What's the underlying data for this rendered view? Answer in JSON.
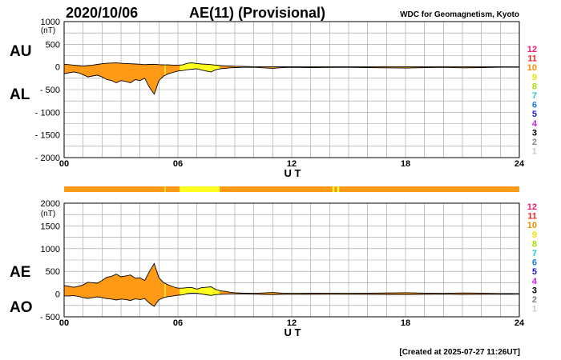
{
  "header": {
    "date": "2020/10/06",
    "title": "AE(11) (Provisional)",
    "source": "WDC for Geomagnetism, Kyoto"
  },
  "footer": {
    "created": "[Created at 2025-07-27 11:26UT]"
  },
  "legend": {
    "levels": [
      {
        "label": "12",
        "color": "#e8196e"
      },
      {
        "label": "11",
        "color": "#e8241c"
      },
      {
        "label": "10",
        "color": "#f08c00"
      },
      {
        "label": "9",
        "color": "#f0e000"
      },
      {
        "label": "8",
        "color": "#a6e000"
      },
      {
        "label": "7",
        "color": "#22c8c8"
      },
      {
        "label": "6",
        "color": "#1e7ce8"
      },
      {
        "label": "5",
        "color": "#1c1ce0"
      },
      {
        "label": "4",
        "color": "#c81ee0"
      },
      {
        "label": "3",
        "color": "#000000"
      },
      {
        "label": "2",
        "color": "#808080"
      },
      {
        "label": "1",
        "color": "#c8c8c8"
      }
    ]
  },
  "colors": {
    "orange": "#ff9a16",
    "yellow": "#ffff1e",
    "grid": "#9a9a9a"
  },
  "station_bar": {
    "segments": [
      {
        "from": 0,
        "to": 5.3,
        "color": "orange"
      },
      {
        "from": 5.3,
        "to": 5.35,
        "color": "yellow"
      },
      {
        "from": 5.35,
        "to": 6.1,
        "color": "orange"
      },
      {
        "from": 6.1,
        "to": 8.2,
        "color": "yellow"
      },
      {
        "from": 8.2,
        "to": 14.15,
        "color": "orange"
      },
      {
        "from": 14.15,
        "to": 14.25,
        "color": "yellow"
      },
      {
        "from": 14.25,
        "to": 14.4,
        "color": "orange"
      },
      {
        "from": 14.4,
        "to": 14.5,
        "color": "yellow"
      },
      {
        "from": 14.5,
        "to": 24,
        "color": "orange"
      }
    ]
  },
  "chart_data": [
    {
      "type": "area",
      "unit": "(nT)",
      "xlabel": "U T",
      "xlim": [
        0,
        24
      ],
      "ylim": [
        -2000,
        1000
      ],
      "x_ticks": [
        "00",
        "06",
        "12",
        "18",
        "24"
      ],
      "y_ticks": [
        "1000",
        "500",
        "0",
        "- 500",
        "- 1000",
        "- 1500",
        "- 2000"
      ],
      "series_labels": [
        "AU",
        "AL"
      ],
      "x": [
        0,
        0.25,
        0.5,
        0.75,
        1,
        1.25,
        1.5,
        1.75,
        2,
        2.25,
        2.5,
        2.75,
        3,
        3.25,
        3.5,
        3.75,
        4,
        4.25,
        4.5,
        4.75,
        5,
        5.25,
        5.5,
        5.75,
        6,
        6.25,
        6.5,
        6.75,
        7,
        7.25,
        7.5,
        7.75,
        8,
        8.25,
        8.5,
        8.75,
        9,
        9.5,
        10,
        10.5,
        11,
        11.5,
        12,
        13,
        14,
        15,
        16,
        17,
        18,
        19,
        20,
        21,
        22,
        23,
        24
      ],
      "au": [
        60,
        50,
        40,
        30,
        20,
        30,
        40,
        55,
        70,
        80,
        85,
        90,
        80,
        75,
        70,
        65,
        60,
        50,
        55,
        60,
        50,
        45,
        45,
        40,
        40,
        45,
        80,
        90,
        75,
        65,
        60,
        50,
        40,
        30,
        25,
        20,
        15,
        10,
        5,
        4,
        4,
        3,
        3,
        4,
        5,
        4,
        5,
        6,
        4,
        5,
        6,
        5,
        4,
        3,
        2
      ],
      "al": [
        -150,
        -130,
        -110,
        -130,
        -170,
        -220,
        -200,
        -180,
        -220,
        -280,
        -300,
        -350,
        -300,
        -320,
        -350,
        -280,
        -300,
        -250,
        -450,
        -600,
        -300,
        -200,
        -150,
        -120,
        -90,
        -80,
        -60,
        -50,
        -40,
        -70,
        -90,
        -110,
        -60,
        -40,
        -30,
        -20,
        -15,
        -10,
        -8,
        -20,
        -30,
        -15,
        -10,
        -15,
        -12,
        -10,
        -15,
        -20,
        -25,
        -15,
        -10,
        -20,
        -15,
        -8,
        -5
      ],
      "colors_by_hour": [
        {
          "from": 0,
          "to": 5.3,
          "color": "orange"
        },
        {
          "from": 5.3,
          "to": 5.35,
          "color": "yellow"
        },
        {
          "from": 5.35,
          "to": 6.1,
          "color": "orange"
        },
        {
          "from": 6.1,
          "to": 8.2,
          "color": "yellow"
        },
        {
          "from": 8.2,
          "to": 24,
          "color": "orange"
        }
      ]
    },
    {
      "type": "area",
      "unit": "(nT)",
      "xlabel": "U T",
      "xlim": [
        0,
        24
      ],
      "ylim": [
        -500,
        2000
      ],
      "x_ticks": [
        "00",
        "06",
        "12",
        "18",
        "24"
      ],
      "y_ticks": [
        "2000",
        "1500",
        "1000",
        "500",
        "0",
        "- 500"
      ],
      "series_labels": [
        "AE",
        "AO"
      ],
      "x": [
        0,
        0.25,
        0.5,
        0.75,
        1,
        1.25,
        1.5,
        1.75,
        2,
        2.25,
        2.5,
        2.75,
        3,
        3.25,
        3.5,
        3.75,
        4,
        4.25,
        4.5,
        4.75,
        5,
        5.25,
        5.5,
        5.75,
        6,
        6.25,
        6.5,
        6.75,
        7,
        7.25,
        7.5,
        7.75,
        8,
        8.25,
        8.5,
        8.75,
        9,
        9.5,
        10,
        10.5,
        11,
        11.5,
        12,
        13,
        14,
        15,
        16,
        17,
        18,
        19,
        20,
        21,
        22,
        23,
        24
      ],
      "ae": [
        190,
        170,
        150,
        170,
        200,
        260,
        250,
        240,
        300,
        370,
        390,
        440,
        380,
        400,
        420,
        350,
        360,
        300,
        500,
        670,
        360,
        250,
        200,
        160,
        130,
        130,
        140,
        140,
        110,
        140,
        150,
        160,
        100,
        70,
        60,
        40,
        30,
        20,
        15,
        25,
        35,
        20,
        15,
        20,
        18,
        15,
        20,
        25,
        30,
        20,
        16,
        25,
        20,
        12,
        8
      ],
      "ao": [
        -40,
        -40,
        -35,
        -50,
        -75,
        -95,
        -80,
        -60,
        -75,
        -100,
        -110,
        -130,
        -110,
        -120,
        -140,
        -105,
        -120,
        -100,
        -200,
        -270,
        -125,
        -80,
        -55,
        -40,
        -25,
        -18,
        10,
        20,
        18,
        0,
        -15,
        -30,
        -10,
        -5,
        -2,
        0,
        0,
        0,
        -2,
        -8,
        -13,
        -6,
        -4,
        -5,
        -4,
        -3,
        -5,
        -7,
        -10,
        -5,
        -2,
        -8,
        -6,
        -3,
        -2
      ],
      "colors_by_hour": [
        {
          "from": 0,
          "to": 5.3,
          "color": "orange"
        },
        {
          "from": 5.3,
          "to": 5.35,
          "color": "yellow"
        },
        {
          "from": 5.35,
          "to": 6.1,
          "color": "orange"
        },
        {
          "from": 6.1,
          "to": 8.2,
          "color": "yellow"
        },
        {
          "from": 8.2,
          "to": 24,
          "color": "orange"
        }
      ]
    }
  ]
}
